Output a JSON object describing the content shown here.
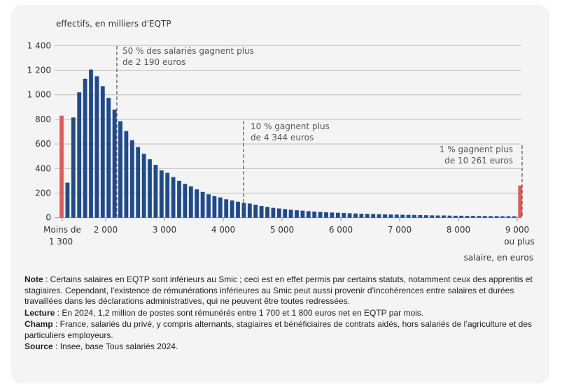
{
  "chart_data": {
    "type": "bar",
    "ylabel": "effectifs, en milliers d'EQTP",
    "xlabel": "salaire, en euros",
    "ylim": [
      0,
      1400
    ],
    "yticks": [
      "0",
      "200",
      "400",
      "600",
      "800",
      "1 000",
      "1 200",
      "1 400"
    ],
    "ytick_values": [
      0,
      200,
      400,
      600,
      800,
      1000,
      1200,
      1400
    ],
    "xticks": [
      {
        "value": 1250,
        "label": "Moins de",
        "label2": "1 300"
      },
      {
        "value": 2000,
        "label": "2 000"
      },
      {
        "value": 3000,
        "label": "3 000"
      },
      {
        "value": 4000,
        "label": "4 000"
      },
      {
        "value": 5000,
        "label": "5 000"
      },
      {
        "value": 6000,
        "label": "6 000"
      },
      {
        "value": 7000,
        "label": "7 000"
      },
      {
        "value": 8000,
        "label": "8 000"
      },
      {
        "value": 9000,
        "label": "9 000",
        "label2": "ou plus"
      }
    ],
    "grid": true,
    "bin_width": 100,
    "extreme_bins": {
      "below_1300": 830,
      "9000_or_more": 262,
      "color": "#e85a5a"
    },
    "bar_color": "#1f4a8c",
    "bins_start": [
      1300,
      1400,
      1500,
      1600,
      1700,
      1800,
      1900,
      2000,
      2100,
      2200,
      2300,
      2400,
      2500,
      2600,
      2700,
      2800,
      2900,
      3000,
      3100,
      3200,
      3300,
      3400,
      3500,
      3600,
      3700,
      3800,
      3900,
      4000,
      4100,
      4200,
      4300,
      4400,
      4500,
      4600,
      4700,
      4800,
      4900,
      5000,
      5100,
      5200,
      5300,
      5400,
      5500,
      5600,
      5700,
      5800,
      5900,
      6000,
      6100,
      6200,
      6300,
      6400,
      6500,
      6600,
      6700,
      6800,
      6900,
      7000,
      7100,
      7200,
      7300,
      7400,
      7500,
      7600,
      7700,
      7800,
      7900,
      8000,
      8100,
      8200,
      8300,
      8400,
      8500,
      8600,
      8700,
      8800,
      8900
    ],
    "values": [
      285,
      815,
      1020,
      1130,
      1205,
      1150,
      1070,
      975,
      880,
      785,
      705,
      630,
      575,
      520,
      475,
      430,
      385,
      365,
      330,
      300,
      275,
      255,
      230,
      210,
      190,
      175,
      165,
      150,
      140,
      130,
      120,
      115,
      105,
      95,
      88,
      80,
      75,
      70,
      65,
      60,
      57,
      53,
      50,
      47,
      44,
      42,
      40,
      38,
      36,
      34,
      32,
      31,
      30,
      28,
      27,
      26,
      25,
      24,
      23,
      22,
      21,
      20,
      19,
      18,
      18,
      17,
      16,
      16,
      15,
      15,
      14,
      14,
      13,
      13,
      12,
      12,
      11
    ],
    "annotations": [
      {
        "x": 2190,
        "line1": "50 % des salariés gagnent plus",
        "line2": "de 2 190 euros"
      },
      {
        "x": 4344,
        "line1": "10 % gagnent plus",
        "line2": "de 4 344 euros"
      },
      {
        "x": 10261,
        "line1": "1 % gagnent plus",
        "line2": "de 10 261 euros"
      }
    ]
  },
  "notes": {
    "note_label": "Note",
    "note": " : Certains salaires en EQTP sont inférieurs au Smic ; ceci est en effet permis par certains statuts, notamment ceux des apprentis et stagiaires. Cependant, l'existence de rémunérations inférieures au Smic peut aussi provenir d’incohérences entre salaires et durées travaillées dans les déclarations administratives, qui ne peuvent être toutes redressées.",
    "lecture_label": "Lecture",
    "lecture": " : En 2024, 1,2 million de postes sont rémunérés entre 1 700 et 1 800 euros net en EQTP par mois.",
    "champ_label": "Champ",
    "champ": " : France, salariés du privé, y compris alternants, stagiaires et bénéficiaires de contrats aidés, hors salariés de l’agriculture et des particuliers employeurs.",
    "source_label": "Source",
    "source": " : Insee, base Tous salariés 2024."
  }
}
